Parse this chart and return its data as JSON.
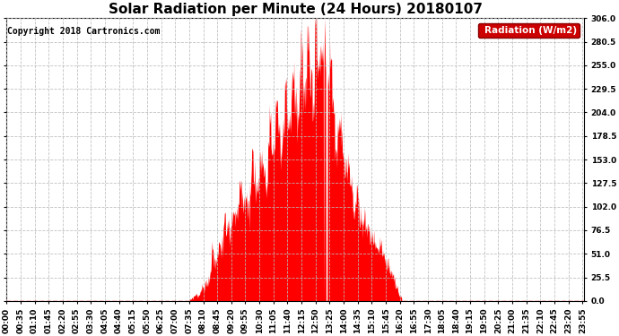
{
  "title": "Solar Radiation per Minute (24 Hours) 20180107",
  "copyright": "Copyright 2018 Cartronics.com",
  "legend_label": "Radiation (W/m2)",
  "ylabel_values": [
    0.0,
    25.5,
    51.0,
    76.5,
    102.0,
    127.5,
    153.0,
    178.5,
    204.0,
    229.5,
    255.0,
    280.5,
    306.0
  ],
  "ymax": 306.0,
  "fill_color": "#FF0000",
  "background_color": "#FFFFFF",
  "grid_color": "#BBBBBB",
  "legend_bg": "#CC0000",
  "legend_text_color": "#FFFFFF",
  "total_minutes": 1440,
  "title_fontsize": 11,
  "copyright_fontsize": 7,
  "tick_fontsize": 6.5,
  "tick_interval": 35
}
